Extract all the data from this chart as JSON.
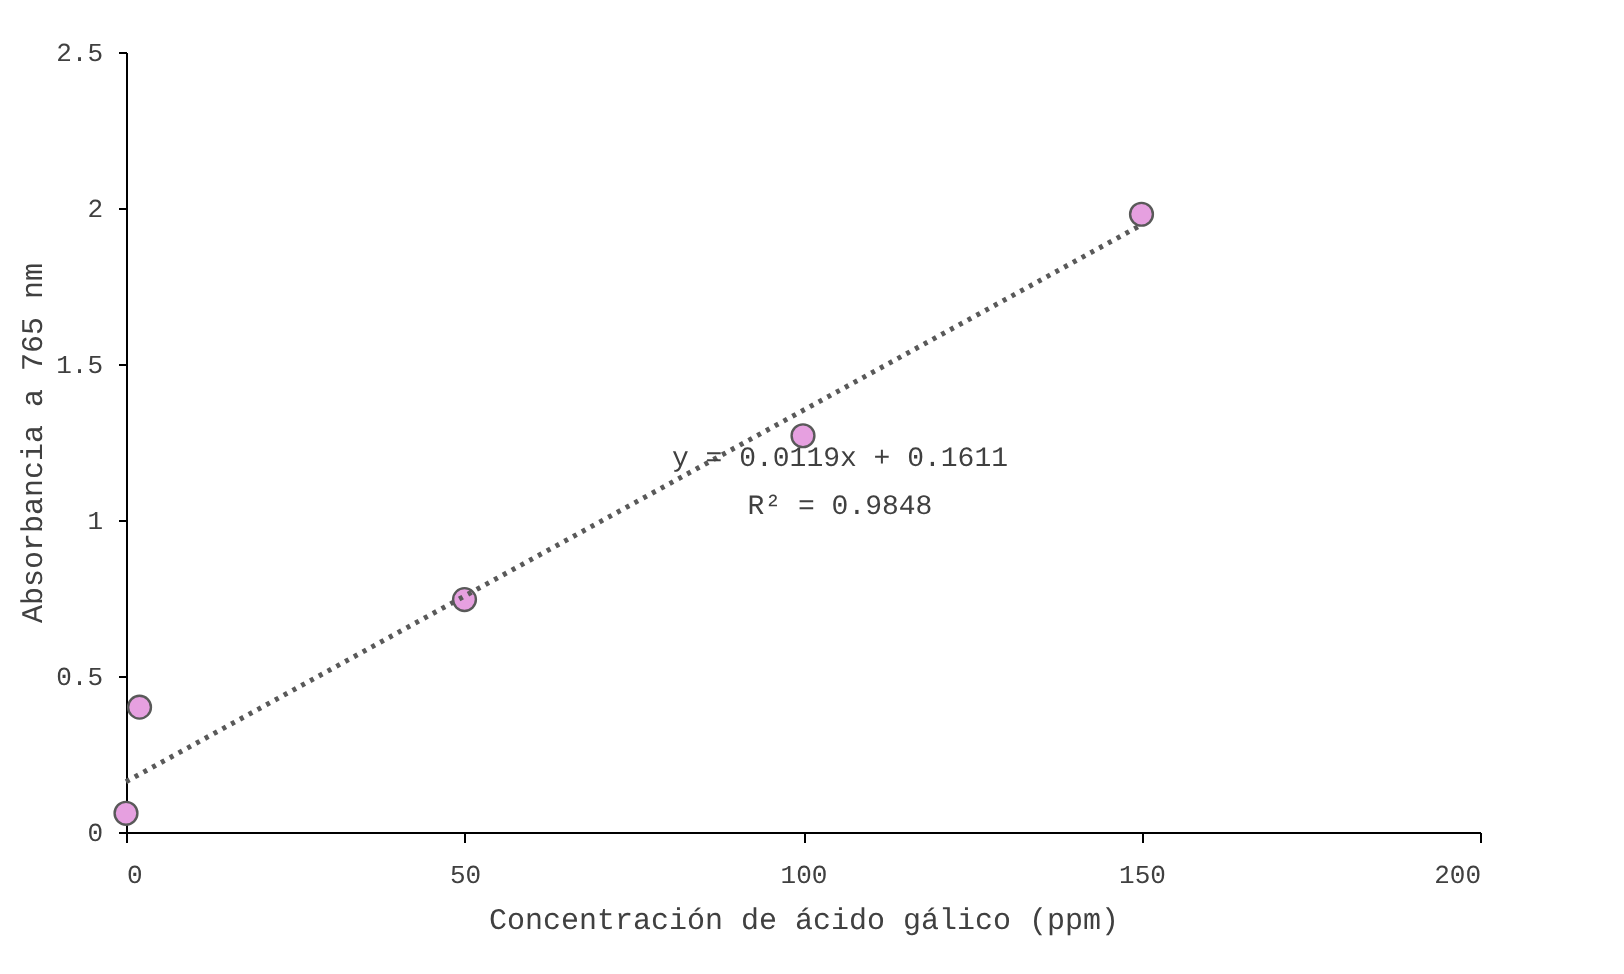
{
  "chart_data": {
    "type": "scatter",
    "xlabel": "Concentración de ácido gálico (ppm)",
    "ylabel": "Absorbancia a 765 nm",
    "xlim": [
      0,
      200
    ],
    "ylim": [
      0,
      2.5
    ],
    "xticks": [
      0,
      50,
      100,
      150,
      200
    ],
    "yticks": [
      0,
      0.5,
      1,
      1.5,
      2,
      2.5
    ],
    "grid": false,
    "series": [
      {
        "type": "scatter",
        "color": "#e6a0e0",
        "marker": "circle",
        "x": [
          0,
          2,
          50,
          100,
          150
        ],
        "values": [
          0.06,
          0.4,
          0.745,
          1.27,
          1.98
        ]
      },
      {
        "type": "line",
        "color": "#595959",
        "line_style": "dotted",
        "x": [
          0,
          150
        ],
        "values": [
          0.1611,
          1.9461
        ]
      }
    ],
    "annotations": [
      "y = 0.0119x + 0.1611",
      "R² = 0.9848"
    ]
  }
}
